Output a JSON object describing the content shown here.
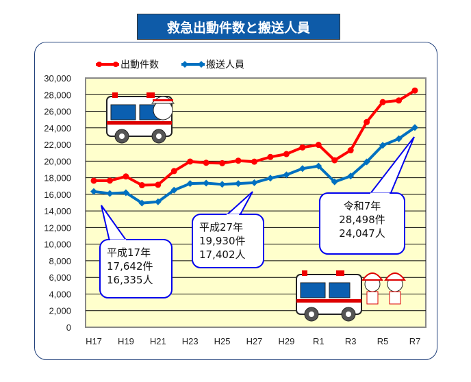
{
  "chart_data": {
    "type": "line",
    "title": "救急出動件数と搬送人員",
    "categories": [
      "H17",
      "H18",
      "H19",
      "H20",
      "H21",
      "H22",
      "H23",
      "H24",
      "H25",
      "H26",
      "H27",
      "H28",
      "H29",
      "H30",
      "R1",
      "R2",
      "R3",
      "R4",
      "R5",
      "R6",
      "R7"
    ],
    "x_tick_labels": [
      "H17",
      "H19",
      "H21",
      "H23",
      "H25",
      "H27",
      "H29",
      "R1",
      "R3",
      "R5",
      "R7"
    ],
    "ylim": [
      0,
      30000
    ],
    "y_tick_labels": [
      "0",
      "2,000",
      "4,000",
      "6,000",
      "8,000",
      "10,000",
      "12,000",
      "14,000",
      "16,000",
      "18,000",
      "20,000",
      "22,000",
      "24,000",
      "26,000",
      "28,000",
      "30,000"
    ],
    "grid": true,
    "legend_position": "top-left",
    "series": [
      {
        "name": "出動件数",
        "color": "#ff0000",
        "marker": "circle",
        "values": [
          17642,
          17650,
          18150,
          17100,
          17150,
          18800,
          19950,
          19800,
          19750,
          20050,
          19930,
          20500,
          20850,
          21650,
          21950,
          20100,
          21300,
          24700,
          27100,
          27300,
          28498
        ]
      },
      {
        "name": "搬送人員",
        "color": "#0070c0",
        "marker": "diamond",
        "values": [
          16335,
          16100,
          16200,
          14950,
          15100,
          16500,
          17300,
          17350,
          17200,
          17300,
          17402,
          17950,
          18350,
          19100,
          19400,
          17500,
          18200,
          19900,
          21900,
          22700,
          24047
        ]
      }
    ],
    "annotations": [
      {
        "lines": [
          "平成17年",
          "17,642件",
          "16,335人"
        ]
      },
      {
        "lines": [
          "平成27年",
          "19,930件",
          "17,402人"
        ]
      },
      {
        "lines": [
          "令和7年",
          "28,498件",
          "24,047人"
        ]
      }
    ],
    "plot_background": "#ffffcc"
  }
}
